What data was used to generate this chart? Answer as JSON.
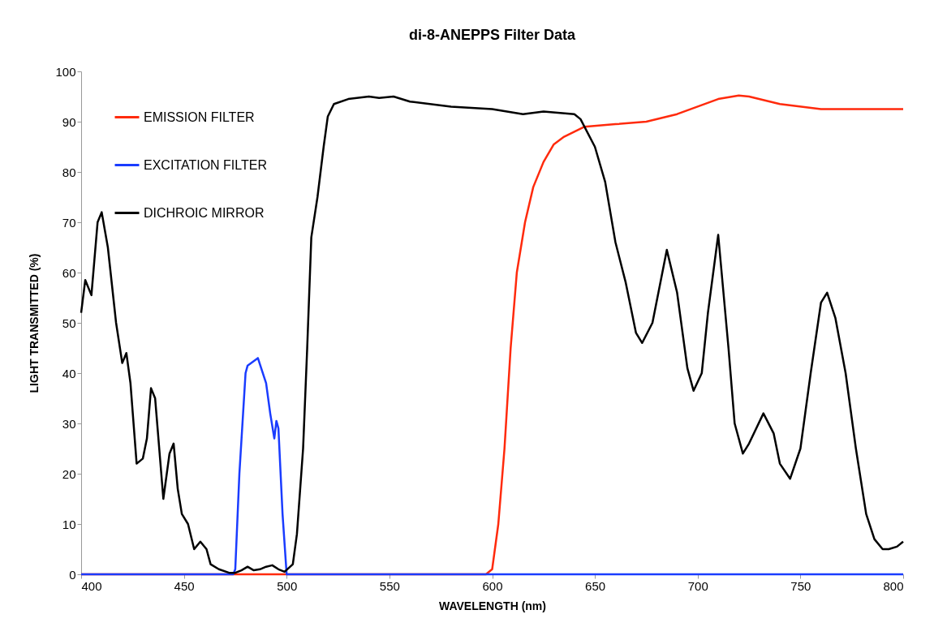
{
  "chart_data": {
    "type": "line",
    "title": "di-8-ANEPPS Filter Data",
    "xlabel": "WAVELENGTH (nm)",
    "ylabel": "LIGHT TRANSMITTED (%)",
    "xlim": [
      400,
      800
    ],
    "xticks": [
      400,
      450,
      500,
      550,
      600,
      650,
      700,
      750,
      800
    ],
    "ylim": [
      0,
      100
    ],
    "yticks": [
      0,
      10,
      20,
      30,
      40,
      50,
      60,
      70,
      80,
      90,
      100
    ],
    "grid": false,
    "legend": "top left",
    "marker": "none",
    "line_style": "solid",
    "series": [
      {
        "name": "EMISSION FILTER",
        "color": "#ff2a0c",
        "x": [
          400,
          450,
          500,
          550,
          597,
          600,
          603,
          606,
          609,
          612,
          616,
          620,
          625,
          630,
          635,
          640,
          645,
          660,
          675,
          690,
          700,
          710,
          720,
          725,
          740,
          760,
          800
        ],
        "values": [
          0,
          0,
          0,
          0,
          0,
          1,
          10,
          25,
          45,
          60,
          70,
          77,
          82,
          85.5,
          87,
          88,
          89,
          89.5,
          90,
          91.5,
          93,
          94.5,
          95.2,
          95,
          93.5,
          92.5,
          92.5
        ]
      },
      {
        "name": "EXCITATION FILTER",
        "color": "#1a3cff",
        "x": [
          400,
          450,
          474,
          475,
          477,
          480,
          481,
          486,
          490,
          492,
          494,
          495,
          496,
          498,
          500,
          550,
          600,
          650,
          700,
          750,
          800
        ],
        "values": [
          0,
          0,
          0,
          1,
          20,
          40,
          41.5,
          43,
          38,
          32,
          27,
          30.5,
          29,
          12,
          0,
          0,
          0,
          0,
          0,
          0,
          0
        ]
      },
      {
        "name": "DICHROIC MIRROR",
        "color": "#000000",
        "x": [
          400,
          402,
          405,
          408,
          410,
          413,
          417,
          420,
          422,
          424,
          427,
          430,
          432,
          434,
          436,
          440,
          443,
          445,
          447,
          449,
          452,
          455,
          458,
          461,
          463,
          467,
          472,
          475,
          478,
          481,
          484,
          487,
          490,
          493,
          496,
          499,
          503,
          505,
          508,
          510,
          512,
          515,
          518,
          520,
          523,
          530,
          540,
          545,
          552,
          560,
          580,
          600,
          615,
          625,
          640,
          643,
          650,
          655,
          660,
          665,
          670,
          673,
          678,
          685,
          690,
          695,
          698,
          702,
          705,
          710,
          715,
          718,
          722,
          725,
          732,
          737,
          740,
          745,
          750,
          755,
          760,
          763,
          767,
          772,
          777,
          782,
          786,
          790,
          793,
          797,
          800
        ],
        "values": [
          52,
          58.5,
          55.5,
          70,
          72,
          65,
          50,
          42,
          44,
          38,
          22,
          23,
          27,
          37,
          35,
          15,
          24,
          26,
          17,
          12,
          10,
          5,
          6.5,
          5,
          2,
          1,
          0.3,
          0.3,
          0.8,
          1.5,
          0.8,
          1,
          1.5,
          1.8,
          1,
          0.5,
          2,
          8,
          25,
          45,
          67,
          75,
          85,
          91,
          93.5,
          94.5,
          95,
          94.7,
          95,
          94,
          93,
          92.5,
          91.5,
          92,
          91.5,
          90.5,
          85,
          78,
          66,
          58,
          48,
          46,
          50,
          64.5,
          56,
          41,
          36.5,
          40,
          52,
          67.5,
          45,
          30,
          24,
          26,
          32,
          28,
          22,
          19,
          25,
          40,
          54,
          56,
          51,
          40,
          25,
          12,
          7,
          5,
          5,
          5.5,
          6.5
        ]
      }
    ]
  }
}
